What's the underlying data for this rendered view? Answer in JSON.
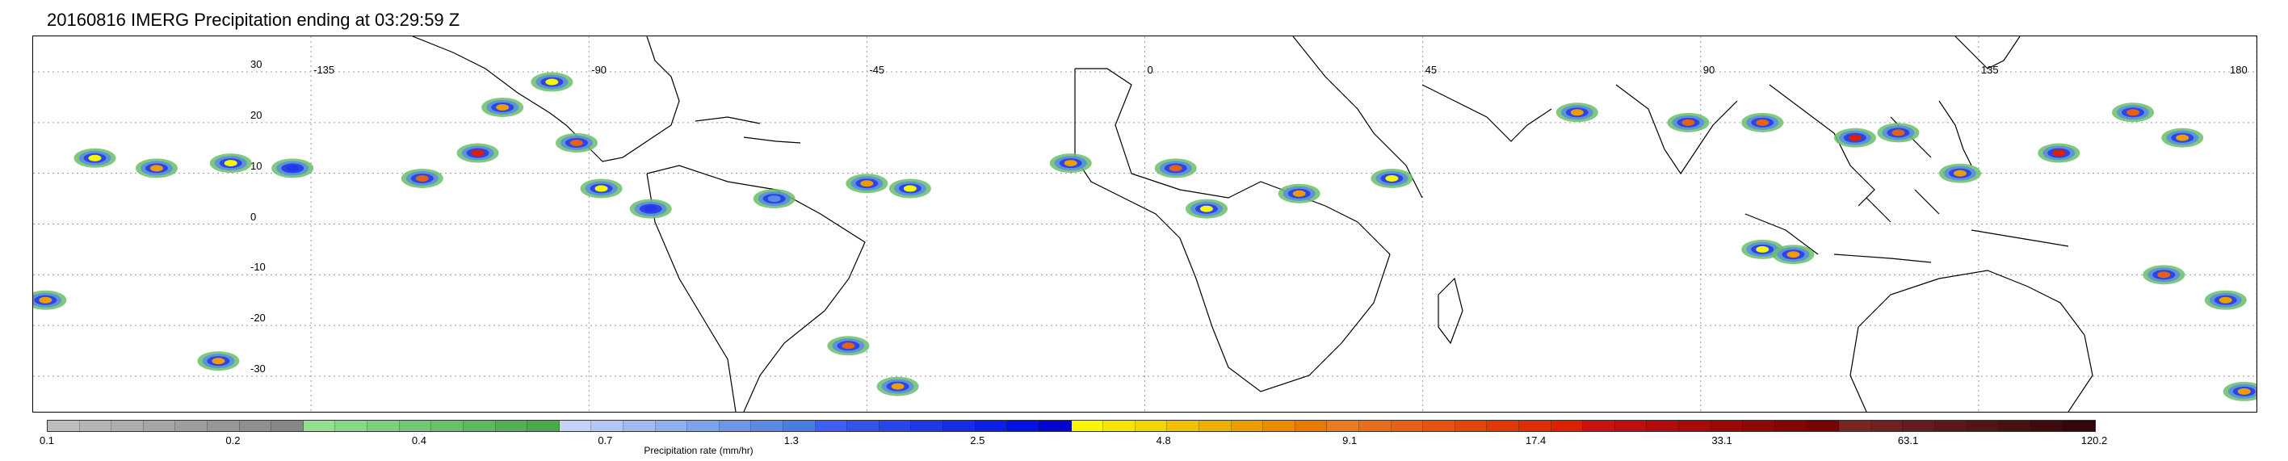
{
  "title": "20160816 IMERG Precipitation ending at 03:29:59 Z",
  "map": {
    "lon_range": [
      -180,
      180
    ],
    "lat_range": [
      -37,
      37
    ],
    "lat_labels": [
      "30",
      "20",
      "10",
      "0",
      "-10",
      "-20",
      "-30"
    ],
    "lat_values": [
      30,
      20,
      10,
      0,
      -10,
      -20,
      -30
    ],
    "lon_labels": [
      "-135",
      "-90",
      "-45",
      "0",
      "45",
      "90",
      "135",
      "180"
    ],
    "lon_values": [
      -135,
      -90,
      -45,
      0,
      45,
      90,
      135,
      180
    ],
    "gridlines": true,
    "coastline_color": "#000000",
    "gridline_color": "#999999"
  },
  "precip_cells": [
    {
      "lon": -170,
      "lat": 13,
      "rate": 4.8
    },
    {
      "lon": -160,
      "lat": 11,
      "rate": 9.1
    },
    {
      "lon": -148,
      "lat": 12,
      "rate": 4.8
    },
    {
      "lon": -138,
      "lat": 11,
      "rate": 2.5
    },
    {
      "lon": -117,
      "lat": 9,
      "rate": 17.4
    },
    {
      "lon": -108,
      "lat": 14,
      "rate": 33.1
    },
    {
      "lon": -104,
      "lat": 23,
      "rate": 9.1
    },
    {
      "lon": -96,
      "lat": 28,
      "rate": 4.8
    },
    {
      "lon": -92,
      "lat": 16,
      "rate": 17.4
    },
    {
      "lon": -88,
      "lat": 7,
      "rate": 4.8
    },
    {
      "lon": -80,
      "lat": 3,
      "rate": 2.5
    },
    {
      "lon": -60,
      "lat": 5,
      "rate": 1.3
    },
    {
      "lon": -45,
      "lat": 8,
      "rate": 9.1
    },
    {
      "lon": -38,
      "lat": 7,
      "rate": 4.8
    },
    {
      "lon": -12,
      "lat": 12,
      "rate": 9.1
    },
    {
      "lon": 5,
      "lat": 11,
      "rate": 17.4
    },
    {
      "lon": 10,
      "lat": 3,
      "rate": 4.8
    },
    {
      "lon": 25,
      "lat": 6,
      "rate": 9.1
    },
    {
      "lon": 40,
      "lat": 9,
      "rate": 4.8
    },
    {
      "lon": 70,
      "lat": 22,
      "rate": 9.1
    },
    {
      "lon": 88,
      "lat": 20,
      "rate": 17.4
    },
    {
      "lon": 100,
      "lat": 20,
      "rate": 17.4
    },
    {
      "lon": 115,
      "lat": 17,
      "rate": 33.1
    },
    {
      "lon": 122,
      "lat": 18,
      "rate": 17.4
    },
    {
      "lon": 132,
      "lat": 10,
      "rate": 9.1
    },
    {
      "lon": 148,
      "lat": 14,
      "rate": 33.1
    },
    {
      "lon": 160,
      "lat": 22,
      "rate": 17.4
    },
    {
      "lon": 168,
      "lat": 17,
      "rate": 9.1
    },
    {
      "lon": 100,
      "lat": -5,
      "rate": 4.8
    },
    {
      "lon": 105,
      "lat": -6,
      "rate": 9.1
    },
    {
      "lon": 165,
      "lat": -10,
      "rate": 17.4
    },
    {
      "lon": 175,
      "lat": -15,
      "rate": 9.1
    },
    {
      "lon": -178,
      "lat": -15,
      "rate": 9.1
    },
    {
      "lon": -150,
      "lat": -27,
      "rate": 9.1
    },
    {
      "lon": -48,
      "lat": -24,
      "rate": 17.4
    },
    {
      "lon": -40,
      "lat": -32,
      "rate": 9.1
    },
    {
      "lon": 178,
      "lat": -33,
      "rate": 9.1
    }
  ],
  "colorbar": {
    "label": "Precipitation rate (mm/hr)",
    "tick_labels": [
      "0.1",
      "0.2",
      "0.4",
      "0.7",
      "1.3",
      "2.5",
      "4.8",
      "9.1",
      "17.4",
      "33.1",
      "63.1",
      "120.2"
    ],
    "segment_colors": [
      "#bdbdbd",
      "#b5b5b5",
      "#adadad",
      "#a6a6a6",
      "#9e9e9e",
      "#969696",
      "#8f8f8f",
      "#878787",
      "#92e092",
      "#87d887",
      "#7dd07d",
      "#72c872",
      "#68c068",
      "#5eb85e",
      "#55b055",
      "#4ba84b",
      "#c6d2f6",
      "#b4c6f4",
      "#a2baf1",
      "#90aeee",
      "#7ea2eb",
      "#6c96e8",
      "#5a8ae5",
      "#487ee2",
      "#3f5ff0",
      "#3552ee",
      "#2b45ec",
      "#2138ea",
      "#172be8",
      "#0d1ee6",
      "#0511e4",
      "#0004d0",
      "#f7f700",
      "#f5e500",
      "#f3d300",
      "#f1c100",
      "#efaf00",
      "#ed9d00",
      "#eb8b00",
      "#e97900",
      "#ec7a20",
      "#ea6d1a",
      "#e86014",
      "#e6530e",
      "#e44608",
      "#e23902",
      "#e02c00",
      "#de1f00",
      "#cc1010",
      "#c00e0e",
      "#b40c0c",
      "#a80a0a",
      "#9c0808",
      "#900606",
      "#840404",
      "#780202",
      "#7a2424",
      "#702020",
      "#661c1c",
      "#5c1818",
      "#521414",
      "#481010",
      "#3e0c0c",
      "#340808"
    ]
  }
}
